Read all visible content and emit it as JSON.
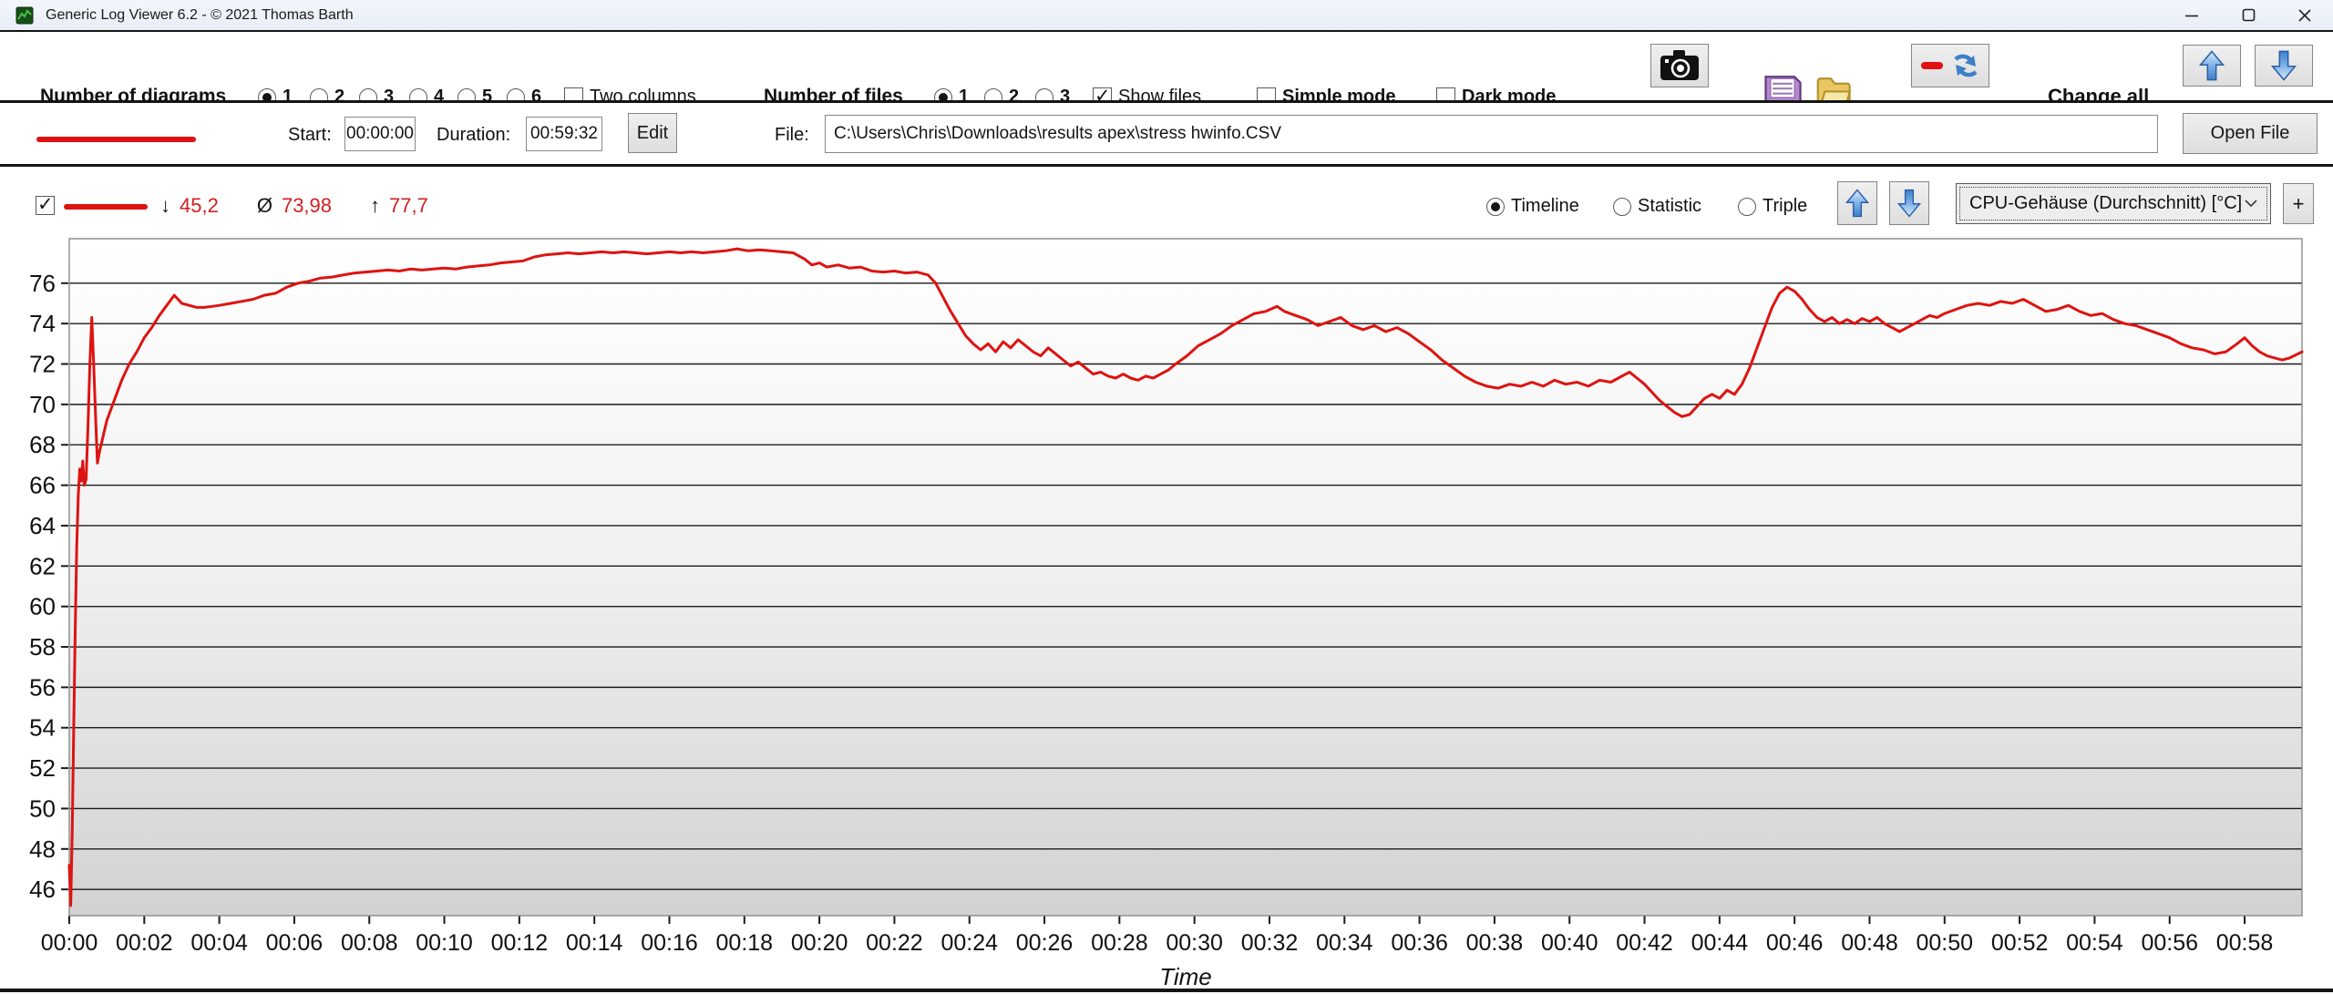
{
  "window": {
    "title": "Generic Log Viewer 6.2 - © 2021 Thomas Barth",
    "controls": [
      "minimize",
      "maximize",
      "close"
    ]
  },
  "toolbar": {
    "diagrams_label": "Number of diagrams",
    "diagram_options": [
      "1",
      "2",
      "3",
      "4",
      "5",
      "6"
    ],
    "diagrams_selected": "1",
    "two_columns_label": "Two columns",
    "two_columns_checked": false,
    "files_label": "Number of files",
    "file_options": [
      "1",
      "2",
      "3"
    ],
    "files_selected": "1",
    "show_files_label": "Show files",
    "show_files_checked": true,
    "simple_mode_label": "Simple mode",
    "simple_mode_checked": false,
    "dark_mode_label": "Dark mode",
    "dark_mode_checked": false,
    "icons": [
      "camera-icon",
      "floppy-save-icon",
      "folder-open-icon",
      "reset-zoom-icon",
      "move-up-icon",
      "move-down-icon"
    ],
    "change_all_label": "Change all"
  },
  "file_row": {
    "start_label": "Start:",
    "start_value": "00:00:00",
    "duration_label": "Duration:",
    "duration_value": "00:59:32",
    "edit_label": "Edit",
    "file_label": "File:",
    "file_path": "C:\\Users\\Chris\\Downloads\\results apex\\stress hwinfo.CSV",
    "open_file_label": "Open File"
  },
  "diagram_header": {
    "series_enabled": true,
    "stats": {
      "min_symbol": "↓",
      "min_value": "45,2",
      "avg_symbol": "Ø",
      "avg_value": "73,98",
      "max_symbol": "↑",
      "max_value": "77,7"
    },
    "modes": [
      "Timeline",
      "Statistic",
      "Triple"
    ],
    "selected_mode": "Timeline",
    "sensor": "CPU-Gehäuse (Durchschnitt) [°C]",
    "add_button_label": "+"
  },
  "colors": {
    "series_red": "#dd1411",
    "stat_red": "#d02020",
    "arrow_blue": "#5b9bd5",
    "grid_black": "#1a1a1a"
  },
  "chart_data": {
    "type": "line",
    "title": "",
    "xlabel": "Time",
    "ylabel": "",
    "ylim": [
      44.7,
      78.2
    ],
    "y_ticks": [
      46,
      48,
      50,
      52,
      54,
      56,
      58,
      60,
      62,
      64,
      66,
      68,
      70,
      72,
      74,
      76
    ],
    "x_max_minutes": 59.53,
    "x_tick_interval_min": 2,
    "x_tick_labels": [
      "00:00",
      "00:02",
      "00:04",
      "00:06",
      "00:08",
      "00:10",
      "00:12",
      "00:14",
      "00:16",
      "00:18",
      "00:20",
      "00:22",
      "00:24",
      "00:26",
      "00:28",
      "00:30",
      "00:32",
      "00:34",
      "00:36",
      "00:38",
      "00:40",
      "00:42",
      "00:44",
      "00:46",
      "00:48",
      "00:50",
      "00:52",
      "00:54",
      "00:56",
      "00:58"
    ],
    "grid": "horizontal",
    "legend_position": "none",
    "background": "white-to-gray vertical gradient",
    "series": [
      {
        "name": "CPU-Gehäuse (Durchschnitt) [°C]",
        "color": "#dd1411",
        "min": 45.2,
        "avg": 73.98,
        "max": 77.7,
        "points": [
          [
            0,
            47.2
          ],
          [
            0.04,
            45.2
          ],
          [
            0.08,
            49
          ],
          [
            0.12,
            54
          ],
          [
            0.16,
            59
          ],
          [
            0.2,
            63
          ],
          [
            0.24,
            65.5
          ],
          [
            0.28,
            66.8
          ],
          [
            0.32,
            66.2
          ],
          [
            0.36,
            67.2
          ],
          [
            0.4,
            66
          ],
          [
            0.45,
            66.3
          ],
          [
            0.5,
            69
          ],
          [
            0.55,
            72
          ],
          [
            0.6,
            74.3
          ],
          [
            0.65,
            72
          ],
          [
            0.7,
            69.5
          ],
          [
            0.75,
            67.1
          ],
          [
            0.8,
            67.6
          ],
          [
            0.9,
            68.4
          ],
          [
            1,
            69.2
          ],
          [
            1.2,
            70.2
          ],
          [
            1.4,
            71.2
          ],
          [
            1.6,
            72
          ],
          [
            1.8,
            72.6
          ],
          [
            2,
            73.3
          ],
          [
            2.2,
            73.8
          ],
          [
            2.4,
            74.4
          ],
          [
            2.6,
            74.9
          ],
          [
            2.8,
            75.4
          ],
          [
            2.9,
            75.2
          ],
          [
            3,
            75
          ],
          [
            3.2,
            74.9
          ],
          [
            3.4,
            74.8
          ],
          [
            3.6,
            74.8
          ],
          [
            3.8,
            74.85
          ],
          [
            4,
            74.9
          ],
          [
            4.3,
            75
          ],
          [
            4.6,
            75.1
          ],
          [
            4.9,
            75.2
          ],
          [
            5.2,
            75.4
          ],
          [
            5.5,
            75.5
          ],
          [
            5.8,
            75.8
          ],
          [
            6.1,
            76
          ],
          [
            6.4,
            76.1
          ],
          [
            6.7,
            76.25
          ],
          [
            7,
            76.3
          ],
          [
            7.3,
            76.4
          ],
          [
            7.6,
            76.5
          ],
          [
            7.9,
            76.55
          ],
          [
            8.2,
            76.6
          ],
          [
            8.5,
            76.65
          ],
          [
            8.8,
            76.6
          ],
          [
            9.1,
            76.7
          ],
          [
            9.4,
            76.65
          ],
          [
            9.7,
            76.7
          ],
          [
            10,
            76.75
          ],
          [
            10.3,
            76.7
          ],
          [
            10.6,
            76.8
          ],
          [
            10.9,
            76.85
          ],
          [
            11.2,
            76.9
          ],
          [
            11.5,
            77
          ],
          [
            11.8,
            77.05
          ],
          [
            12.1,
            77.1
          ],
          [
            12.4,
            77.3
          ],
          [
            12.7,
            77.4
          ],
          [
            13,
            77.45
          ],
          [
            13.3,
            77.5
          ],
          [
            13.6,
            77.45
          ],
          [
            13.9,
            77.5
          ],
          [
            14.2,
            77.55
          ],
          [
            14.5,
            77.5
          ],
          [
            14.8,
            77.55
          ],
          [
            15.1,
            77.5
          ],
          [
            15.4,
            77.45
          ],
          [
            15.7,
            77.5
          ],
          [
            16,
            77.55
          ],
          [
            16.3,
            77.5
          ],
          [
            16.6,
            77.55
          ],
          [
            16.9,
            77.5
          ],
          [
            17.2,
            77.55
          ],
          [
            17.5,
            77.6
          ],
          [
            17.8,
            77.7
          ],
          [
            18.1,
            77.6
          ],
          [
            18.4,
            77.65
          ],
          [
            18.7,
            77.6
          ],
          [
            19,
            77.55
          ],
          [
            19.3,
            77.5
          ],
          [
            19.6,
            77.2
          ],
          [
            19.8,
            76.9
          ],
          [
            20,
            77
          ],
          [
            20.2,
            76.8
          ],
          [
            20.5,
            76.9
          ],
          [
            20.8,
            76.75
          ],
          [
            21.1,
            76.8
          ],
          [
            21.4,
            76.6
          ],
          [
            21.7,
            76.55
          ],
          [
            22,
            76.6
          ],
          [
            22.3,
            76.5
          ],
          [
            22.6,
            76.55
          ],
          [
            22.9,
            76.4
          ],
          [
            23.1,
            76
          ],
          [
            23.3,
            75.3
          ],
          [
            23.5,
            74.6
          ],
          [
            23.7,
            74
          ],
          [
            23.9,
            73.4
          ],
          [
            24.1,
            73
          ],
          [
            24.3,
            72.7
          ],
          [
            24.5,
            73
          ],
          [
            24.7,
            72.6
          ],
          [
            24.9,
            73.1
          ],
          [
            25.1,
            72.8
          ],
          [
            25.3,
            73.2
          ],
          [
            25.5,
            72.9
          ],
          [
            25.7,
            72.6
          ],
          [
            25.9,
            72.4
          ],
          [
            26.1,
            72.8
          ],
          [
            26.3,
            72.5
          ],
          [
            26.5,
            72.2
          ],
          [
            26.7,
            71.9
          ],
          [
            26.9,
            72.1
          ],
          [
            27.1,
            71.8
          ],
          [
            27.3,
            71.5
          ],
          [
            27.5,
            71.6
          ],
          [
            27.7,
            71.4
          ],
          [
            27.9,
            71.3
          ],
          [
            28.1,
            71.5
          ],
          [
            28.3,
            71.3
          ],
          [
            28.5,
            71.2
          ],
          [
            28.7,
            71.4
          ],
          [
            28.9,
            71.3
          ],
          [
            29.1,
            71.5
          ],
          [
            29.3,
            71.7
          ],
          [
            29.5,
            72
          ],
          [
            29.8,
            72.4
          ],
          [
            30.1,
            72.9
          ],
          [
            30.4,
            73.2
          ],
          [
            30.7,
            73.5
          ],
          [
            31,
            73.9
          ],
          [
            31.3,
            74.2
          ],
          [
            31.6,
            74.5
          ],
          [
            31.9,
            74.6
          ],
          [
            32.2,
            74.85
          ],
          [
            32.4,
            74.6
          ],
          [
            32.7,
            74.4
          ],
          [
            33,
            74.2
          ],
          [
            33.3,
            73.9
          ],
          [
            33.6,
            74.1
          ],
          [
            33.9,
            74.3
          ],
          [
            34.2,
            73.9
          ],
          [
            34.5,
            73.7
          ],
          [
            34.8,
            73.9
          ],
          [
            35.1,
            73.6
          ],
          [
            35.4,
            73.8
          ],
          [
            35.7,
            73.5
          ],
          [
            36,
            73.1
          ],
          [
            36.3,
            72.7
          ],
          [
            36.6,
            72.2
          ],
          [
            36.9,
            71.8
          ],
          [
            37.2,
            71.4
          ],
          [
            37.5,
            71.1
          ],
          [
            37.8,
            70.9
          ],
          [
            38.1,
            70.8
          ],
          [
            38.4,
            71
          ],
          [
            38.7,
            70.9
          ],
          [
            39,
            71.1
          ],
          [
            39.3,
            70.9
          ],
          [
            39.6,
            71.2
          ],
          [
            39.9,
            71
          ],
          [
            40.2,
            71.1
          ],
          [
            40.5,
            70.9
          ],
          [
            40.8,
            71.2
          ],
          [
            41.1,
            71.1
          ],
          [
            41.4,
            71.4
          ],
          [
            41.6,
            71.6
          ],
          [
            41.8,
            71.3
          ],
          [
            42,
            71
          ],
          [
            42.2,
            70.6
          ],
          [
            42.4,
            70.2
          ],
          [
            42.6,
            69.9
          ],
          [
            42.8,
            69.6
          ],
          [
            43,
            69.4
          ],
          [
            43.2,
            69.5
          ],
          [
            43.4,
            69.9
          ],
          [
            43.6,
            70.3
          ],
          [
            43.8,
            70.5
          ],
          [
            44,
            70.3
          ],
          [
            44.2,
            70.7
          ],
          [
            44.4,
            70.5
          ],
          [
            44.6,
            71
          ],
          [
            44.8,
            71.8
          ],
          [
            45,
            72.8
          ],
          [
            45.2,
            73.8
          ],
          [
            45.4,
            74.8
          ],
          [
            45.6,
            75.5
          ],
          [
            45.8,
            75.8
          ],
          [
            46,
            75.6
          ],
          [
            46.2,
            75.2
          ],
          [
            46.4,
            74.7
          ],
          [
            46.6,
            74.3
          ],
          [
            46.8,
            74.1
          ],
          [
            47,
            74.3
          ],
          [
            47.2,
            74
          ],
          [
            47.4,
            74.2
          ],
          [
            47.6,
            74
          ],
          [
            47.8,
            74.25
          ],
          [
            48,
            74.1
          ],
          [
            48.2,
            74.3
          ],
          [
            48.4,
            74
          ],
          [
            48.6,
            73.8
          ],
          [
            48.8,
            73.6
          ],
          [
            49,
            73.8
          ],
          [
            49.2,
            74
          ],
          [
            49.4,
            74.2
          ],
          [
            49.6,
            74.4
          ],
          [
            49.8,
            74.3
          ],
          [
            50,
            74.5
          ],
          [
            50.3,
            74.7
          ],
          [
            50.6,
            74.9
          ],
          [
            50.9,
            75
          ],
          [
            51.2,
            74.9
          ],
          [
            51.5,
            75.1
          ],
          [
            51.8,
            75
          ],
          [
            52.1,
            75.2
          ],
          [
            52.4,
            74.9
          ],
          [
            52.7,
            74.6
          ],
          [
            53,
            74.7
          ],
          [
            53.3,
            74.9
          ],
          [
            53.6,
            74.6
          ],
          [
            53.9,
            74.4
          ],
          [
            54.2,
            74.5
          ],
          [
            54.5,
            74.2
          ],
          [
            54.8,
            74
          ],
          [
            55.1,
            73.9
          ],
          [
            55.4,
            73.7
          ],
          [
            55.7,
            73.5
          ],
          [
            56,
            73.3
          ],
          [
            56.3,
            73
          ],
          [
            56.6,
            72.8
          ],
          [
            56.9,
            72.7
          ],
          [
            57.2,
            72.5
          ],
          [
            57.5,
            72.6
          ],
          [
            57.8,
            73
          ],
          [
            58,
            73.3
          ],
          [
            58.2,
            72.9
          ],
          [
            58.4,
            72.6
          ],
          [
            58.6,
            72.4
          ],
          [
            58.8,
            72.3
          ],
          [
            59,
            72.2
          ],
          [
            59.2,
            72.3
          ],
          [
            59.53,
            72.6
          ]
        ]
      }
    ]
  }
}
